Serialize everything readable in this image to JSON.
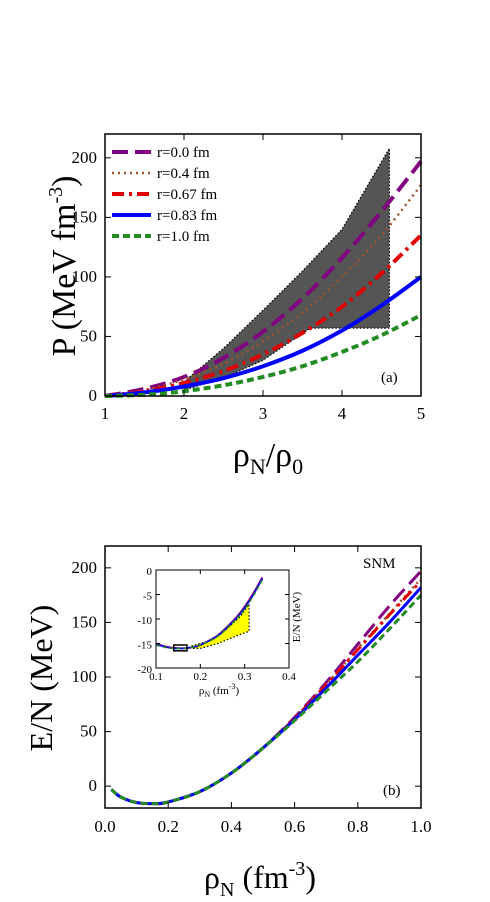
{
  "chart_data": [
    {
      "type": "line",
      "panel_label": "(a)",
      "xlim": [
        1,
        5
      ],
      "ylim": [
        0,
        220
      ],
      "x_ticks": [
        1,
        2,
        3,
        4,
        5
      ],
      "y_ticks": [
        0,
        50,
        100,
        150,
        200
      ],
      "xlabel": {
        "rho": "ρ",
        "sub1": "N",
        "slash": "/",
        "rho2": "ρ",
        "sub2": "0"
      },
      "ylabel": {
        "main": "P (MeV fm",
        "sup": "-3",
        "close": ")"
      },
      "legend_position": "top-left",
      "band": {
        "name": "constraint",
        "color": "#555555",
        "upper": [
          [
            2.0,
            12
          ],
          [
            2.5,
            40
          ],
          [
            3.0,
            72
          ],
          [
            3.5,
            105
          ],
          [
            4.0,
            140
          ],
          [
            4.6,
            208
          ]
        ],
        "lower": [
          [
            4.6,
            57
          ],
          [
            4.0,
            57
          ],
          [
            3.6,
            57
          ],
          [
            3.0,
            30
          ],
          [
            2.5,
            15
          ],
          [
            2.0,
            5
          ]
        ]
      },
      "series": [
        {
          "name": "r=0.0 fm",
          "color": "#800080",
          "dash": "16,7",
          "width": 4,
          "x": [
            1.0,
            1.5,
            2.0,
            2.5,
            3.0,
            3.5,
            4.0,
            4.5,
            5.0
          ],
          "y": [
            0,
            6,
            16,
            32,
            54,
            82,
            116,
            155,
            197
          ]
        },
        {
          "name": "r=0.4 fm",
          "color": "#a0522d",
          "dash": "2,4",
          "width": 2.5,
          "x": [
            1.0,
            1.5,
            2.0,
            2.5,
            3.0,
            3.5,
            4.0,
            4.5,
            5.0
          ],
          "y": [
            0,
            5,
            14,
            27,
            46,
            70,
            100,
            135,
            177
          ]
        },
        {
          "name": "r=0.67 fm",
          "color": "#e00000",
          "dash": "12,5,3,5",
          "width": 4,
          "x": [
            1.0,
            1.5,
            2.0,
            2.5,
            3.0,
            3.5,
            4.0,
            4.5,
            5.0
          ],
          "y": [
            0,
            4,
            11,
            21,
            35,
            53,
            75,
            103,
            135
          ]
        },
        {
          "name": "r=0.83 fm",
          "color": "#0000ff",
          "dash": "",
          "width": 4,
          "x": [
            1.0,
            1.5,
            2.0,
            2.5,
            3.0,
            3.5,
            4.0,
            4.5,
            5.0
          ],
          "y": [
            0,
            3,
            8,
            15,
            25,
            38,
            55,
            76,
            100
          ]
        },
        {
          "name": "r=1.0 fm",
          "color": "#228b22",
          "dash": "7,4",
          "width": 4,
          "x": [
            1.0,
            1.5,
            2.0,
            2.5,
            3.0,
            3.5,
            4.0,
            4.5,
            5.0
          ],
          "y": [
            0,
            1,
            4,
            9,
            16,
            25,
            37,
            51,
            68
          ]
        }
      ]
    },
    {
      "type": "line",
      "panel_label": "(b)",
      "annotation": "SNM",
      "xlim": [
        0,
        1.0
      ],
      "ylim": [
        -20,
        220
      ],
      "x_ticks": [
        0.0,
        0.2,
        0.4,
        0.6,
        0.8,
        1.0
      ],
      "x_tick_labels": [
        "0.0",
        "0.2",
        "0.4",
        "0.6",
        "0.8",
        "1.0"
      ],
      "y_ticks": [
        0,
        50,
        100,
        150,
        200
      ],
      "xlabel": {
        "rho": "ρ",
        "sub": "N",
        "unit": " (fm",
        "sup": "-3",
        "close": ")"
      },
      "ylabel": "E/N (MeV)",
      "series": [
        {
          "name": "r=0.0 fm",
          "color": "#800080",
          "dash": "16,7",
          "width": 3,
          "x": [
            0.02,
            0.05,
            0.1,
            0.16,
            0.2,
            0.3,
            0.4,
            0.5,
            0.6,
            0.7,
            0.8,
            0.9,
            1.0
          ],
          "y": [
            -3,
            -10,
            -15,
            -16,
            -14.5,
            -5,
            12,
            35,
            63,
            95,
            130,
            165,
            197
          ]
        },
        {
          "name": "r=0.4 fm",
          "color": "#a0522d",
          "dash": "2,4",
          "width": 2.5,
          "x": [
            0.02,
            0.05,
            0.1,
            0.16,
            0.2,
            0.3,
            0.4,
            0.5,
            0.6,
            0.7,
            0.8,
            0.9,
            1.0
          ],
          "y": [
            -3,
            -10,
            -15,
            -16,
            -14.5,
            -5,
            12,
            35,
            62,
            93,
            126,
            158,
            190
          ]
        },
        {
          "name": "r=0.67 fm",
          "color": "#e00000",
          "dash": "12,5,3,5",
          "width": 3,
          "x": [
            0.02,
            0.05,
            0.1,
            0.16,
            0.2,
            0.3,
            0.4,
            0.5,
            0.6,
            0.7,
            0.8,
            0.9,
            1.0
          ],
          "y": [
            -3,
            -10,
            -15,
            -16,
            -14.5,
            -5,
            12,
            35,
            62,
            93,
            125,
            157,
            188
          ]
        },
        {
          "name": "r=0.83 fm",
          "color": "#0000ff",
          "dash": "",
          "width": 3,
          "x": [
            0.02,
            0.05,
            0.1,
            0.16,
            0.2,
            0.3,
            0.4,
            0.5,
            0.6,
            0.7,
            0.8,
            0.9,
            1.0
          ],
          "y": [
            -3,
            -10,
            -15,
            -16,
            -14.5,
            -5,
            12,
            35,
            61,
            90,
            120,
            150,
            182
          ]
        },
        {
          "name": "r=1.0 fm",
          "color": "#228b22",
          "dash": "7,4",
          "width": 3,
          "x": [
            0.02,
            0.05,
            0.1,
            0.16,
            0.2,
            0.3,
            0.4,
            0.5,
            0.6,
            0.7,
            0.8,
            0.9,
            1.0
          ],
          "y": [
            -3,
            -10,
            -15,
            -16,
            -14.5,
            -5,
            12,
            35,
            60,
            87,
            114,
            144,
            175
          ]
        }
      ],
      "inset": {
        "type": "line",
        "xlim": [
          0.1,
          0.4
        ],
        "ylim": [
          -20,
          0
        ],
        "x_ticks": [
          0.1,
          0.2,
          0.3,
          0.4
        ],
        "y_ticks": [
          -20,
          -15,
          -10,
          -5,
          0
        ],
        "xlabel": {
          "rho": "ρ",
          "sub": "N",
          "unit": " (fm",
          "sup": "-3",
          "close": ")"
        },
        "ylabel": "E/N (MeV)",
        "band": {
          "name": "constraint",
          "color": "#ffff00",
          "upper": [
            [
              0.18,
              -15.5
            ],
            [
              0.22,
              -14.5
            ],
            [
              0.26,
              -12
            ],
            [
              0.29,
              -9.5
            ],
            [
              0.31,
              -7
            ]
          ],
          "lower": [
            [
              0.31,
              -12.5
            ],
            [
              0.28,
              -13.5
            ],
            [
              0.24,
              -15
            ],
            [
              0.2,
              -16
            ],
            [
              0.18,
              -16
            ]
          ]
        },
        "box": {
          "x": [
            0.14,
            0.17
          ],
          "y": [
            -16.5,
            -15.3
          ]
        },
        "series": [
          {
            "name": "r=0.0 fm",
            "color": "#800080",
            "dash": "",
            "width": 2,
            "x": [
              0.1,
              0.12,
              0.14,
              0.16,
              0.18,
              0.2,
              0.24,
              0.28,
              0.3,
              0.32,
              0.34
            ],
            "y": [
              -15,
              -15.6,
              -15.9,
              -16,
              -15.8,
              -15.3,
              -13.3,
              -9.8,
              -7.5,
              -4.7,
              -1.5
            ]
          },
          {
            "name": "r=0.83 fm",
            "color": "#0000ff",
            "dash": "",
            "width": 1.5,
            "x": [
              0.1,
              0.12,
              0.14,
              0.16,
              0.18,
              0.2,
              0.24,
              0.28,
              0.3,
              0.32,
              0.34
            ],
            "y": [
              -15.2,
              -15.7,
              -16,
              -16,
              -15.8,
              -15.3,
              -13.4,
              -10,
              -7.8,
              -5,
              -1.8
            ]
          },
          {
            "name": "r=1.0 fm",
            "color": "#228b22",
            "dash": "4,3",
            "width": 1.5,
            "x": [
              0.1,
              0.12,
              0.14,
              0.16,
              0.18,
              0.2,
              0.24,
              0.28,
              0.3,
              0.32,
              0.34
            ],
            "y": [
              -15.3,
              -15.8,
              -16,
              -16,
              -15.8,
              -15.3,
              -13.5,
              -10.1,
              -8,
              -5.2,
              -2
            ]
          }
        ]
      }
    }
  ]
}
